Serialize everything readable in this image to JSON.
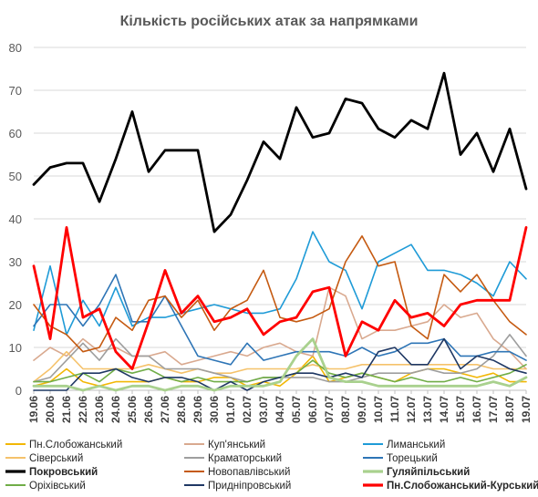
{
  "chart_data": {
    "type": "line",
    "title": "Кількість російських атак за напрямками",
    "xlabel": "",
    "ylabel": "",
    "ylim": [
      0,
      80
    ],
    "yticks": [
      0,
      10,
      20,
      30,
      40,
      50,
      60,
      70,
      80
    ],
    "grid": true,
    "legend_position": "bottom",
    "categories": [
      "19.06",
      "20.06",
      "21.06",
      "22.06",
      "23.06",
      "24.06",
      "25.06",
      "26.06",
      "27.06",
      "28.06",
      "29.06",
      "30.06",
      "01.07",
      "02.07",
      "03.07",
      "04.07",
      "05.07",
      "06.07",
      "07.07",
      "08.07",
      "09.07",
      "10.07",
      "11.07",
      "12.07",
      "13.07",
      "14.07",
      "15.07",
      "16.07",
      "17.07",
      "18.07",
      "19.07"
    ],
    "labeled_categories": [
      "19.06",
      "20.06",
      "21.06",
      "22.06",
      "23.06",
      "24.06",
      "25.06",
      "26.06",
      "27.06",
      "28.06",
      "29.06",
      "30.06",
      "01.07",
      "02.07",
      "03.07",
      "04.07",
      "05.07",
      "06.07",
      "07.07",
      "08.07",
      "09.07",
      "10.07",
      "11.07",
      "12.07",
      "13.07",
      "14.07",
      "15.07",
      "16.07",
      "17.07",
      "18.07",
      "19.07"
    ],
    "series": [
      {
        "name": "Пн.Слобожанський",
        "color": "#f2b705",
        "width": 1.6,
        "values": [
          1,
          2,
          5,
          2,
          1,
          2,
          2,
          2,
          3,
          2,
          2,
          3,
          3,
          1,
          2,
          1,
          4,
          8,
          2,
          3,
          4,
          3,
          2,
          4,
          5,
          5,
          4,
          3,
          4,
          2,
          2
        ]
      },
      {
        "name": "Куп'янський",
        "color": "#d9a98f",
        "width": 1.6,
        "values": [
          7,
          10,
          8,
          12,
          9,
          10,
          8,
          8,
          9,
          6,
          7,
          8,
          9,
          8,
          10,
          11,
          9,
          8,
          24,
          22,
          12,
          14,
          14,
          15,
          16,
          20,
          17,
          18,
          12,
          9,
          5
        ]
      },
      {
        "name": "Лиманський",
        "color": "#1f9bd7",
        "width": 1.6,
        "values": [
          14,
          29,
          13,
          21,
          15,
          24,
          15,
          17,
          17,
          18,
          19,
          20,
          19,
          18,
          18,
          19,
          26,
          37,
          30,
          28,
          19,
          30,
          32,
          34,
          28,
          28,
          27,
          25,
          22,
          30,
          26
        ]
      },
      {
        "name": "Сіверський",
        "color": "#f5c26b",
        "width": 1.6,
        "values": [
          2,
          5,
          9,
          5,
          5,
          5,
          5,
          6,
          5,
          4,
          5,
          4,
          4,
          5,
          5,
          5,
          5,
          6,
          5,
          5,
          6,
          6,
          6,
          6,
          6,
          6,
          6,
          6,
          5,
          5,
          5
        ]
      },
      {
        "name": "Краматорський",
        "color": "#9e9e9e",
        "width": 1.6,
        "values": [
          2,
          3,
          7,
          11,
          7,
          12,
          8,
          8,
          5,
          5,
          5,
          4,
          3,
          2,
          3,
          3,
          3,
          3,
          2,
          2,
          3,
          4,
          4,
          4,
          5,
          4,
          4,
          5,
          8,
          13,
          8
        ]
      },
      {
        "name": "Торецький",
        "color": "#2e75b6",
        "width": 1.6,
        "values": [
          15,
          20,
          20,
          15,
          20,
          27,
          16,
          16,
          22,
          15,
          8,
          7,
          6,
          11,
          7,
          8,
          9,
          9,
          9,
          8,
          10,
          8,
          9,
          11,
          11,
          12,
          8,
          8,
          9,
          9,
          7
        ]
      },
      {
        "name": "Покровський",
        "color": "#000000",
        "width": 2.8,
        "values": [
          48,
          52,
          53,
          53,
          44,
          54,
          65,
          51,
          56,
          56,
          56,
          37,
          41,
          49,
          58,
          54,
          66,
          59,
          60,
          68,
          67,
          61,
          59,
          63,
          61,
          74,
          55,
          60,
          51,
          61,
          47
        ]
      },
      {
        "name": "Новопавлівський",
        "color": "#c55a11",
        "width": 1.6,
        "values": [
          20,
          15,
          13,
          9,
          10,
          17,
          14,
          21,
          22,
          17,
          21,
          14,
          19,
          21,
          28,
          17,
          16,
          17,
          19,
          30,
          36,
          29,
          30,
          15,
          12,
          27,
          23,
          27,
          21,
          16,
          13
        ]
      },
      {
        "name": "Гуляйпільський",
        "color": "#a9d18e",
        "width": 2.8,
        "values": [
          1,
          1,
          1,
          0,
          1,
          0,
          1,
          1,
          0,
          1,
          1,
          0,
          1,
          1,
          1,
          2,
          8,
          12,
          3,
          2,
          2,
          1,
          1,
          1,
          1,
          1,
          1,
          1,
          2,
          1,
          3
        ]
      },
      {
        "name": "Оріхівський",
        "color": "#70ad47",
        "width": 1.6,
        "values": [
          2,
          2,
          3,
          4,
          2,
          5,
          4,
          5,
          3,
          2,
          3,
          2,
          2,
          2,
          3,
          3,
          4,
          7,
          4,
          3,
          4,
          3,
          2,
          3,
          2,
          2,
          3,
          2,
          3,
          4,
          6
        ]
      },
      {
        "name": "Придніпровський",
        "color": "#1f3864",
        "width": 1.6,
        "values": [
          0,
          0,
          0,
          4,
          4,
          5,
          3,
          2,
          3,
          3,
          2,
          0,
          2,
          0,
          2,
          3,
          4,
          4,
          3,
          4,
          3,
          9,
          10,
          6,
          6,
          12,
          5,
          8,
          7,
          5,
          4
        ]
      },
      {
        "name": "Пн.Слобожанський-Курський",
        "color": "#ff0000",
        "width": 2.8,
        "values": [
          29,
          12,
          38,
          17,
          19,
          9,
          5,
          16,
          28,
          18,
          22,
          16,
          17,
          19,
          13,
          16,
          17,
          23,
          24,
          8,
          16,
          14,
          21,
          17,
          18,
          15,
          20,
          21,
          21,
          21,
          38
        ]
      }
    ]
  }
}
